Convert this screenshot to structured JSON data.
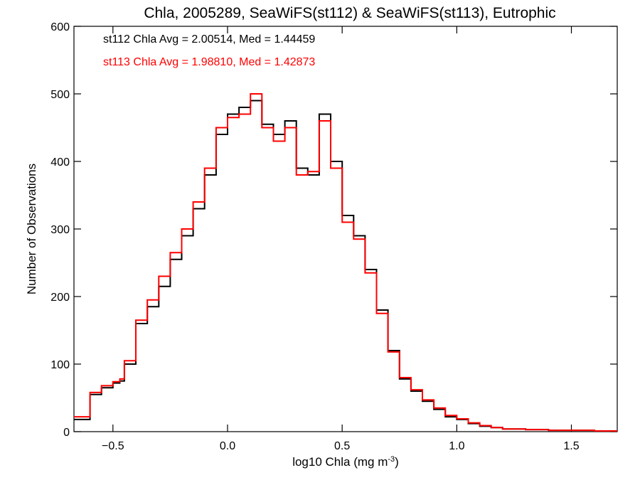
{
  "chart_data": {
    "type": "line",
    "title": "Chla, 2005289, SeaWiFS(st112) & SeaWiFS(st113), Eutrophic",
    "xlabel_main": "log10 Chla (mg m",
    "xlabel_sup": "-3",
    "xlabel_tail": ")",
    "ylabel": "Number of Observations",
    "xlim": [
      -0.67,
      1.7
    ],
    "ylim": [
      0,
      600
    ],
    "xticks": [
      {
        "value": -0.5,
        "label": "−0.5"
      },
      {
        "value": 0.0,
        "label": "0.0"
      },
      {
        "value": 0.5,
        "label": "0.5"
      },
      {
        "value": 1.0,
        "label": "1.0"
      },
      {
        "value": 1.5,
        "label": "1.5"
      }
    ],
    "yticks": [
      {
        "value": 0,
        "label": "0"
      },
      {
        "value": 100,
        "label": "100"
      },
      {
        "value": 200,
        "label": "200"
      },
      {
        "value": 300,
        "label": "300"
      },
      {
        "value": 400,
        "label": "400"
      },
      {
        "value": 500,
        "label": "500"
      },
      {
        "value": 600,
        "label": "600"
      }
    ],
    "legend": [
      {
        "text": "st112 Chla Avg = 2.00514, Med = 1.44459",
        "color": "#000000"
      },
      {
        "text": "st113 Chla Avg = 1.98810, Med = 1.42873",
        "color": "#ff0000"
      }
    ],
    "legend_position": "top-left",
    "series": [
      {
        "color": "#000000",
        "x": [
          -0.67,
          -0.6,
          -0.55,
          -0.5,
          -0.47,
          -0.45,
          -0.4,
          -0.35,
          -0.3,
          -0.25,
          -0.2,
          -0.15,
          -0.1,
          -0.05,
          0.0,
          0.05,
          0.1,
          0.15,
          0.2,
          0.25,
          0.3,
          0.35,
          0.4,
          0.45,
          0.5,
          0.55,
          0.6,
          0.65,
          0.7,
          0.75,
          0.8,
          0.85,
          0.9,
          0.95,
          1.0,
          1.05,
          1.1,
          1.15,
          1.2,
          1.3,
          1.4,
          1.5,
          1.6,
          1.7
        ],
        "y": [
          18,
          55,
          65,
          72,
          75,
          100,
          160,
          185,
          215,
          255,
          290,
          330,
          380,
          440,
          470,
          480,
          490,
          455,
          440,
          460,
          390,
          380,
          470,
          400,
          320,
          290,
          240,
          180,
          120,
          78,
          60,
          45,
          33,
          22,
          18,
          12,
          8,
          6,
          4,
          3,
          2,
          2,
          1,
          1
        ]
      },
      {
        "color": "#ff0000",
        "x": [
          -0.67,
          -0.6,
          -0.55,
          -0.5,
          -0.47,
          -0.45,
          -0.4,
          -0.35,
          -0.3,
          -0.25,
          -0.2,
          -0.15,
          -0.1,
          -0.05,
          0.0,
          0.05,
          0.1,
          0.15,
          0.2,
          0.25,
          0.3,
          0.35,
          0.4,
          0.45,
          0.5,
          0.55,
          0.6,
          0.65,
          0.7,
          0.75,
          0.8,
          0.85,
          0.9,
          0.95,
          1.0,
          1.05,
          1.1,
          1.15,
          1.2,
          1.3,
          1.4,
          1.5,
          1.6,
          1.7
        ],
        "y": [
          22,
          58,
          68,
          74,
          78,
          105,
          165,
          195,
          230,
          265,
          300,
          340,
          390,
          450,
          465,
          470,
          500,
          450,
          430,
          450,
          380,
          385,
          460,
          390,
          310,
          285,
          235,
          175,
          118,
          80,
          62,
          47,
          35,
          24,
          19,
          13,
          9,
          6,
          4,
          3,
          2,
          2,
          1,
          1
        ]
      }
    ]
  }
}
